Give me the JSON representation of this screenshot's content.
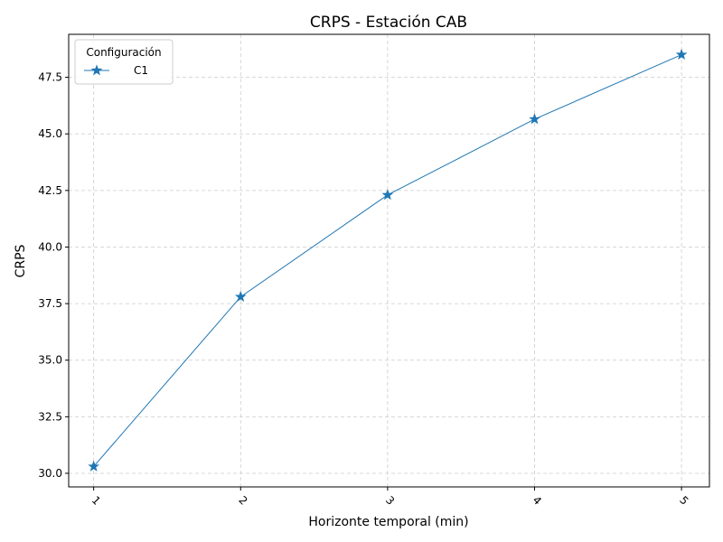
{
  "chart_data": {
    "type": "line",
    "title": "CRPS - Estación CAB",
    "xlabel": "Horizonte temporal (min)",
    "ylabel": "CRPS",
    "categories": [
      "1",
      "2",
      "3",
      "4",
      "5"
    ],
    "x": [
      1,
      2,
      3,
      4,
      5
    ],
    "series": [
      {
        "name": "C1",
        "values": [
          30.3,
          37.8,
          42.3,
          45.65,
          48.5
        ],
        "color": "#1f77b4",
        "marker": "star"
      }
    ],
    "yticks": [
      "30.0",
      "32.5",
      "35.0",
      "37.5",
      "40.0",
      "42.5",
      "45.0",
      "47.5"
    ],
    "ylim": [
      29.4,
      49.4
    ],
    "xlim": [
      0.83,
      5.19
    ],
    "grid": true,
    "legend": {
      "title": "Configuración",
      "placement": "top-left"
    },
    "xtick_rotation": 45
  }
}
